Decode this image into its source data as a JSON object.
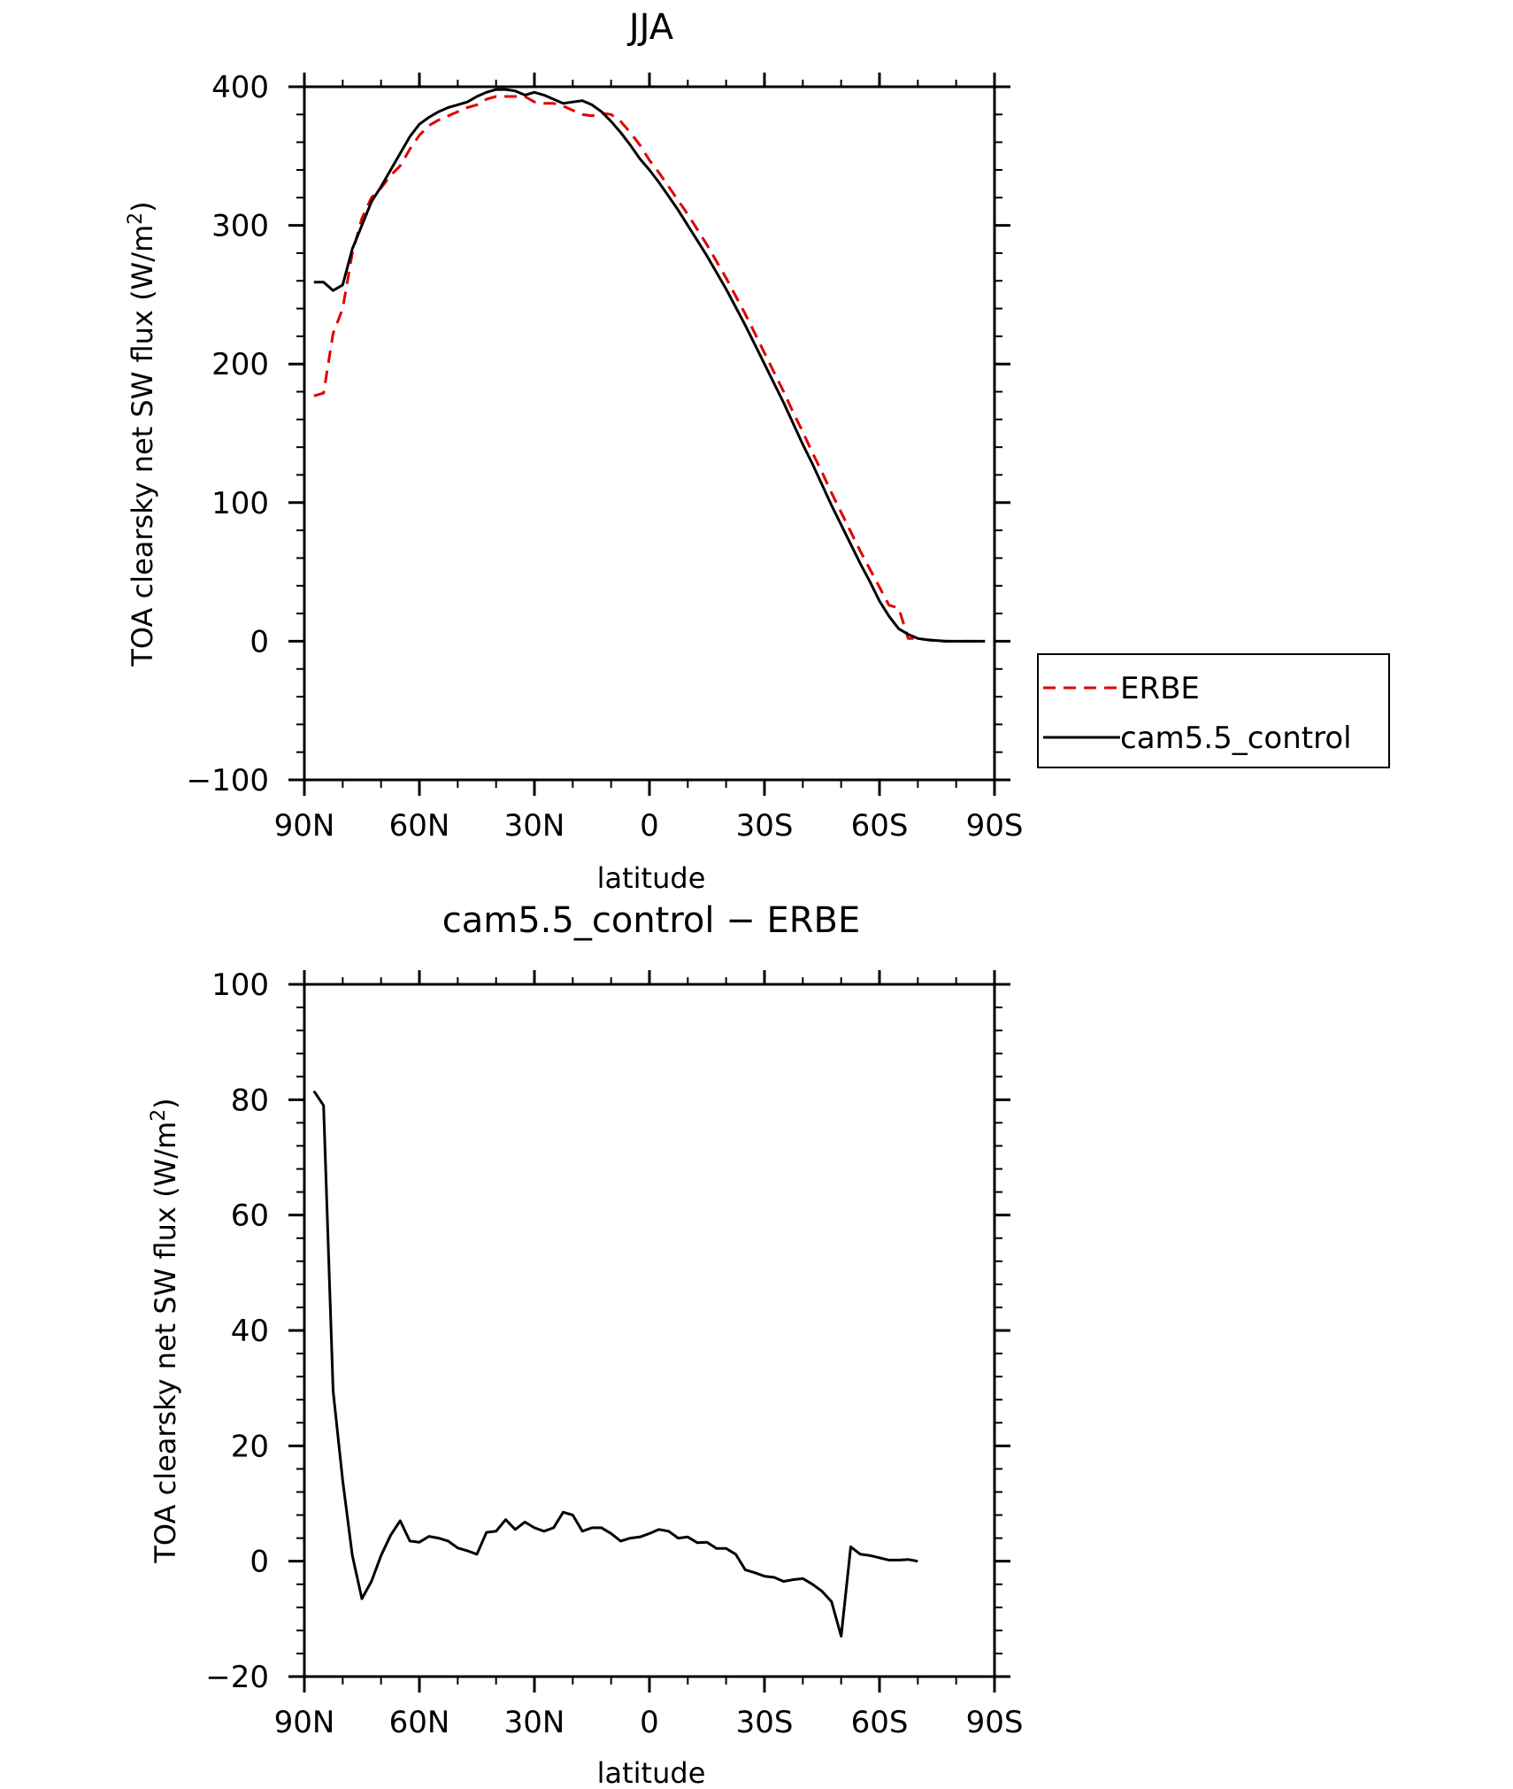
{
  "chart_data": [
    {
      "type": "line",
      "title": "JJA",
      "xlabel": "latitude",
      "ylabel": "TOA clearsky net SW flux (W/m",
      "ylabel_sup": "2",
      "ylabel_close": ")",
      "xlim": [
        90,
        -90
      ],
      "ylim": [
        -100,
        400
      ],
      "xticks": [
        90,
        60,
        30,
        0,
        -30,
        -60,
        -90
      ],
      "xtick_labels": [
        "90N",
        "60N",
        "30N",
        "0",
        "30S",
        "60S",
        "90S"
      ],
      "yticks": [
        -100,
        0,
        100,
        200,
        300,
        400
      ],
      "ytick_labels": [
        "−100",
        "0",
        "100",
        "200",
        "300",
        "400"
      ],
      "legend_position": "right",
      "series": [
        {
          "name": "ERBE",
          "color": "#e00000",
          "dash": true,
          "points": [
            [
              87.5,
              177
            ],
            [
              85,
              179
            ],
            [
              82.5,
              222
            ],
            [
              80,
              240
            ],
            [
              77.5,
              280
            ],
            [
              75,
              305
            ],
            [
              72.5,
              320
            ],
            [
              70,
              327
            ],
            [
              67.5,
              336
            ],
            [
              65,
              343
            ],
            [
              62.5,
              355
            ],
            [
              60,
              365
            ],
            [
              57.5,
              372
            ],
            [
              55,
              376
            ],
            [
              52.5,
              379
            ],
            [
              50,
              382
            ],
            [
              47.5,
              385
            ],
            [
              45,
              387
            ],
            [
              42.5,
              391
            ],
            [
              40,
              393
            ],
            [
              37.5,
              393
            ],
            [
              35,
              393
            ],
            [
              32.5,
              393
            ],
            [
              30,
              389
            ],
            [
              27.5,
              388
            ],
            [
              25,
              388
            ],
            [
              22.5,
              386
            ],
            [
              20,
              383
            ],
            [
              17.5,
              380
            ],
            [
              15,
              379
            ],
            [
              12.5,
              381
            ],
            [
              10,
              380
            ],
            [
              7.5,
              375
            ],
            [
              5,
              367
            ],
            [
              2.5,
              358
            ],
            [
              0,
              347
            ],
            [
              -2.5,
              338
            ],
            [
              -5,
              328
            ],
            [
              -7.5,
              318
            ],
            [
              -10,
              308
            ],
            [
              -12.5,
              297
            ],
            [
              -15,
              286
            ],
            [
              -17.5,
              274
            ],
            [
              -20,
              262
            ],
            [
              -22.5,
              249
            ],
            [
              -25,
              236
            ],
            [
              -27.5,
              222
            ],
            [
              -30,
              208
            ],
            [
              -32.5,
              194
            ],
            [
              -35,
              180
            ],
            [
              -37.5,
              165
            ],
            [
              -40,
              151
            ],
            [
              -42.5,
              136
            ],
            [
              -45,
              122
            ],
            [
              -47.5,
              107
            ],
            [
              -50,
              93
            ],
            [
              -52.5,
              79
            ],
            [
              -55,
              65
            ],
            [
              -57.5,
              52
            ],
            [
              -60,
              39
            ],
            [
              -62.5,
              26
            ],
            [
              -65,
              24
            ],
            [
              -67.5,
              2
            ],
            [
              -70,
              2
            ],
            [
              -72.5,
              1
            ],
            [
              -75,
              0
            ],
            [
              -77.5,
              0
            ],
            [
              -80,
              0
            ],
            [
              -82.5,
              0
            ],
            [
              -85,
              0
            ],
            [
              -87.5,
              0
            ]
          ]
        },
        {
          "name": "cam5.5_control",
          "color": "#000000",
          "dash": false,
          "points": [
            [
              87.5,
              259
            ],
            [
              85,
              259
            ],
            [
              82.5,
              253
            ],
            [
              80,
              257
            ],
            [
              77.5,
              283
            ],
            [
              75,
              300
            ],
            [
              72.5,
              317
            ],
            [
              70,
              328
            ],
            [
              67.5,
              340
            ],
            [
              65,
              352
            ],
            [
              62.5,
              364
            ],
            [
              60,
              373
            ],
            [
              57.5,
              378
            ],
            [
              55,
              382
            ],
            [
              52.5,
              385
            ],
            [
              50,
              387
            ],
            [
              47.5,
              389
            ],
            [
              45,
              393
            ],
            [
              42.5,
              396
            ],
            [
              40,
              398
            ],
            [
              37.5,
              398
            ],
            [
              35,
              397
            ],
            [
              32.5,
              394
            ],
            [
              30,
              396
            ],
            [
              27.5,
              394
            ],
            [
              25,
              391
            ],
            [
              22.5,
              388
            ],
            [
              20,
              389
            ],
            [
              17.5,
              390
            ],
            [
              15,
              387
            ],
            [
              12.5,
              382
            ],
            [
              10,
              375
            ],
            [
              7.5,
              367
            ],
            [
              5,
              358
            ],
            [
              2.5,
              348
            ],
            [
              0,
              340
            ],
            [
              -2.5,
              331
            ],
            [
              -5,
              321
            ],
            [
              -7.5,
              311
            ],
            [
              -10,
              300
            ],
            [
              -12.5,
              289
            ],
            [
              -15,
              278
            ],
            [
              -17.5,
              266
            ],
            [
              -20,
              254
            ],
            [
              -22.5,
              241
            ],
            [
              -25,
              228
            ],
            [
              -27.5,
              214
            ],
            [
              -30,
              200
            ],
            [
              -32.5,
              186
            ],
            [
              -35,
              172
            ],
            [
              -37.5,
              157
            ],
            [
              -40,
              142
            ],
            [
              -42.5,
              128
            ],
            [
              -45,
              113
            ],
            [
              -47.5,
              98
            ],
            [
              -50,
              84
            ],
            [
              -52.5,
              70
            ],
            [
              -55,
              56
            ],
            [
              -57.5,
              43
            ],
            [
              -60,
              29
            ],
            [
              -62.5,
              18
            ],
            [
              -65,
              9
            ],
            [
              -67.5,
              5
            ],
            [
              -70,
              2
            ],
            [
              -72.5,
              1
            ],
            [
              -75,
              0.5
            ],
            [
              -77.5,
              0
            ],
            [
              -80,
              0
            ],
            [
              -82.5,
              0
            ],
            [
              -85,
              0
            ],
            [
              -87.5,
              0
            ]
          ]
        }
      ]
    },
    {
      "type": "line",
      "title": "cam5.5_control − ERBE",
      "xlabel": "latitude",
      "ylabel": "TOA clearsky net SW flux (W/m",
      "ylabel_sup": "2",
      "ylabel_close": ")",
      "xlim": [
        90,
        -90
      ],
      "ylim": [
        -20,
        100
      ],
      "xticks": [
        90,
        60,
        30,
        0,
        -30,
        -60,
        -90
      ],
      "xtick_labels": [
        "90N",
        "60N",
        "30N",
        "0",
        "30S",
        "60S",
        "90S"
      ],
      "yticks": [
        -20,
        0,
        20,
        40,
        60,
        80,
        100
      ],
      "ytick_labels": [
        "−20",
        "0",
        "20",
        "40",
        "60",
        "80",
        "100"
      ],
      "series": [
        {
          "color": "#000000",
          "dash": false,
          "points": [
            [
              87.5,
              81.5
            ],
            [
              85,
              79
            ],
            [
              82.5,
              29.5
            ],
            [
              80,
              14
            ],
            [
              77.5,
              1
            ],
            [
              75,
              -6.5
            ],
            [
              72.5,
              -3.5
            ],
            [
              70,
              1
            ],
            [
              67.5,
              4.5
            ],
            [
              65,
              7
            ],
            [
              62.5,
              3.5
            ],
            [
              60,
              3.3
            ],
            [
              57.5,
              4.3
            ],
            [
              55,
              4
            ],
            [
              52.5,
              3.5
            ],
            [
              50,
              2.3
            ],
            [
              47.5,
              1.8
            ],
            [
              45,
              1.2
            ],
            [
              42.5,
              5
            ],
            [
              40,
              5.2
            ],
            [
              37.5,
              7.2
            ],
            [
              35,
              5.5
            ],
            [
              32.5,
              6.8
            ],
            [
              30,
              5.8
            ],
            [
              27.5,
              5.2
            ],
            [
              25,
              5.8
            ],
            [
              22.5,
              8.5
            ],
            [
              20,
              8
            ],
            [
              17.5,
              5.2
            ],
            [
              15,
              5.8
            ],
            [
              12.5,
              5.8
            ],
            [
              10,
              4.8
            ],
            [
              7.5,
              3.5
            ],
            [
              5,
              4
            ],
            [
              2.5,
              4.2
            ],
            [
              0,
              4.8
            ],
            [
              -2.5,
              5.5
            ],
            [
              -5,
              5.2
            ],
            [
              -7.5,
              4
            ],
            [
              -10,
              4.2
            ],
            [
              -12.5,
              3.2
            ],
            [
              -15,
              3.3
            ],
            [
              -17.5,
              2.2
            ],
            [
              -20,
              2.2
            ],
            [
              -22.5,
              1.2
            ],
            [
              -25,
              -1.5
            ],
            [
              -27.5,
              -2
            ],
            [
              -30,
              -2.6
            ],
            [
              -32.5,
              -2.8
            ],
            [
              -35,
              -3.5
            ],
            [
              -37.5,
              -3.2
            ],
            [
              -40,
              -3
            ],
            [
              -42.5,
              -4
            ],
            [
              -45,
              -5.2
            ],
            [
              -47.5,
              -7
            ],
            [
              -50,
              -13
            ],
            [
              -52.5,
              2.5
            ],
            [
              -55,
              1.2
            ],
            [
              -57.5,
              1
            ],
            [
              -60,
              0.6
            ],
            [
              -62.5,
              0.2
            ],
            [
              -65,
              0.2
            ],
            [
              -67.5,
              0.3
            ],
            [
              -70,
              0
            ]
          ]
        }
      ]
    }
  ]
}
